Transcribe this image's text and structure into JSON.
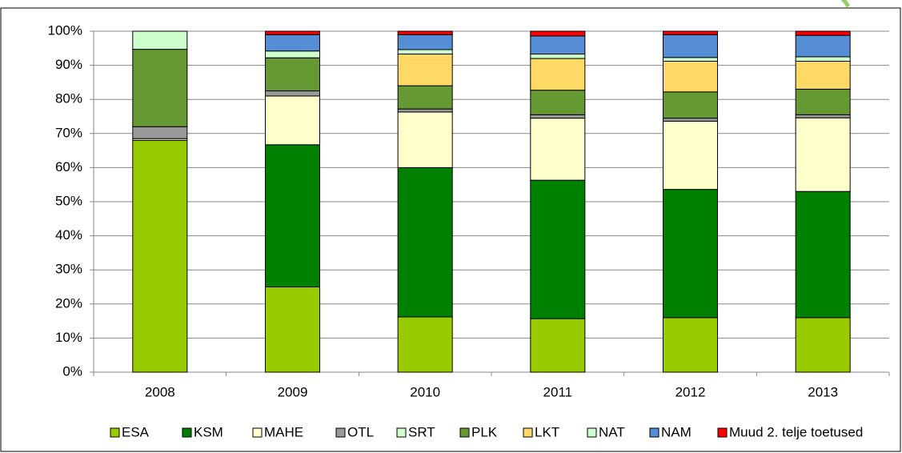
{
  "chart_data": {
    "type": "stacked_bar",
    "categories": [
      "2008",
      "2009",
      "2010",
      "2011",
      "2012",
      "2013"
    ],
    "series": [
      {
        "name": "ESA",
        "color": "#99cc00",
        "values": [
          68,
          25,
          16.2,
          15.7,
          16,
          16
        ]
      },
      {
        "name": "KSM",
        "color": "#008000",
        "values": [
          0,
          41.7,
          43.8,
          40.6,
          37.6,
          37
        ]
      },
      {
        "name": "MAHE",
        "color": "#ffffcc",
        "values": [
          0.5,
          14.3,
          16.3,
          18.2,
          20,
          21.6
        ]
      },
      {
        "name": "OTL",
        "color": "#999999",
        "values": [
          3.5,
          1.5,
          0.9,
          1.0,
          0.9,
          0.9
        ]
      },
      {
        "name": "SRT",
        "color": "#ccffcc",
        "values": [
          0,
          0,
          0,
          0,
          0,
          0
        ]
      },
      {
        "name": "PLK",
        "color": "#669933",
        "values": [
          22.7,
          9.7,
          6.8,
          7.2,
          7.7,
          7.5
        ]
      },
      {
        "name": "LKT",
        "color": "#ffd966",
        "values": [
          0,
          0,
          9.3,
          9.3,
          9.0,
          8.2
        ]
      },
      {
        "name": "NAT",
        "color": "#ccffcc",
        "values": [
          5.3,
          2.0,
          1.3,
          1.3,
          1.1,
          1.3
        ]
      },
      {
        "name": "NAM",
        "color": "#558ed5",
        "values": [
          0,
          4.8,
          4.4,
          5.3,
          6.7,
          6.3
        ]
      },
      {
        "name": "Muud 2. telje toetused",
        "color": "#ff0000",
        "values": [
          0,
          1.0,
          1.0,
          1.4,
          1.0,
          1.2
        ]
      }
    ],
    "ylim": [
      0,
      100
    ],
    "yticks": [
      {
        "value": 0,
        "label": "0%"
      },
      {
        "value": 10,
        "label": "10%"
      },
      {
        "value": 20,
        "label": "20%"
      },
      {
        "value": 30,
        "label": "30%"
      },
      {
        "value": 40,
        "label": "40%"
      },
      {
        "value": 50,
        "label": "50%"
      },
      {
        "value": 60,
        "label": "60%"
      },
      {
        "value": 70,
        "label": "70%"
      },
      {
        "value": 80,
        "label": "80%"
      },
      {
        "value": 90,
        "label": "90%"
      },
      {
        "value": 100,
        "label": "100%"
      }
    ],
    "grid": true,
    "legend": "bottom"
  }
}
